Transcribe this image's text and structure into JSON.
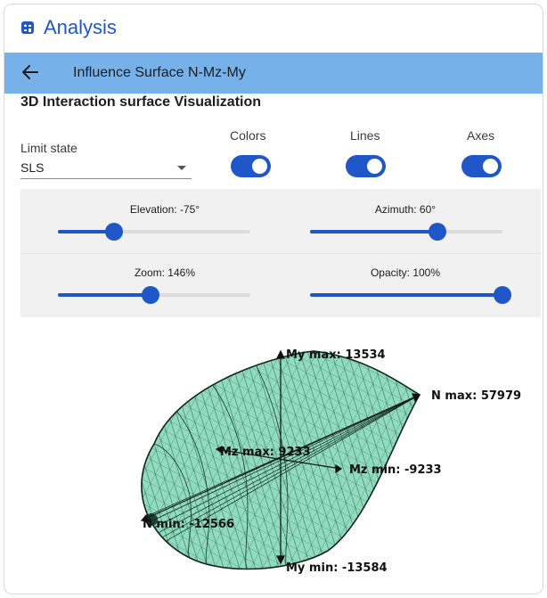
{
  "app": {
    "title": "Analysis",
    "icon": "calculator-icon"
  },
  "subheader": {
    "back_icon": "arrow-left-icon",
    "title": "Influence Surface N-Mz-My"
  },
  "section": {
    "title": "3D Interaction surface Visualization"
  },
  "limit_state": {
    "label": "Limit state",
    "value": "SLS"
  },
  "toggles": [
    {
      "label": "Colors",
      "on": true
    },
    {
      "label": "Lines",
      "on": true
    },
    {
      "label": "Axes",
      "on": true
    }
  ],
  "sliders": {
    "elevation": {
      "label": "Elevation: -75°",
      "fraction": 0.29
    },
    "azimuth": {
      "label": "Azimuth: 60°",
      "fraction": 0.66
    },
    "zoom": {
      "label": "Zoom: 146%",
      "fraction": 0.48
    },
    "opacity": {
      "label": "Opacity: 100%",
      "fraction": 1.0
    }
  },
  "plot": {
    "surface_color": "#8fdcbf",
    "accent": "#1f56c8",
    "axes": {
      "my_max": "My max: 13534",
      "my_min": "My min: -13584",
      "n_max": "N max: 57979",
      "n_min": "N min: -12566",
      "mz_max": "Mz max: 9233",
      "mz_min": "Mz min: -9233"
    }
  }
}
